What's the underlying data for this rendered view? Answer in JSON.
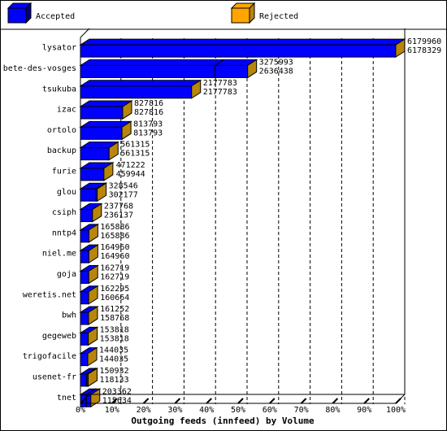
{
  "legend": {
    "accepted": "Accepted",
    "rejected": "Rejected"
  },
  "colors": {
    "accepted": "#0000ff",
    "rejected": "#ffa500",
    "accepted_side": "#000080",
    "rejected_side": "#b8860b"
  },
  "chart_data": {
    "type": "bar",
    "orientation": "horizontal",
    "stacked_3d": true,
    "title": "",
    "xlabel": "Outgoing feeds (innfeed) by Volume",
    "ylabel": "",
    "xlim": [
      0,
      100
    ],
    "x_unit": "%",
    "x_ticks": [
      "0%",
      "10%",
      "20%",
      "30%",
      "40%",
      "50%",
      "60%",
      "70%",
      "80%",
      "90%",
      "100%"
    ],
    "legend_position": "top",
    "categories": [
      "lysator",
      "bete-des-vosges",
      "tsukuba",
      "izac",
      "ortolo",
      "backup",
      "furie",
      "glou",
      "csiph",
      "nntp4",
      "niel.me",
      "goja",
      "weretis.net",
      "bwh",
      "gegeweb",
      "trigofacile",
      "usenet-fr",
      "tnet"
    ],
    "series": [
      {
        "name": "Accepted",
        "values": [
          6179960,
          3275993,
          2177783,
          827816,
          813793,
          561315,
          471222,
          328546,
          237768,
          165886,
          164960,
          162719,
          162295,
          161252,
          153818,
          144035,
          150932,
          203362
        ]
      },
      {
        "name": "Rejected",
        "values": [
          6178329,
          2636438,
          2177783,
          827816,
          813793,
          561315,
          459944,
          302177,
          236137,
          165886,
          164960,
          162719,
          160664,
          158768,
          153818,
          144035,
          118133,
          115634
        ]
      }
    ]
  }
}
